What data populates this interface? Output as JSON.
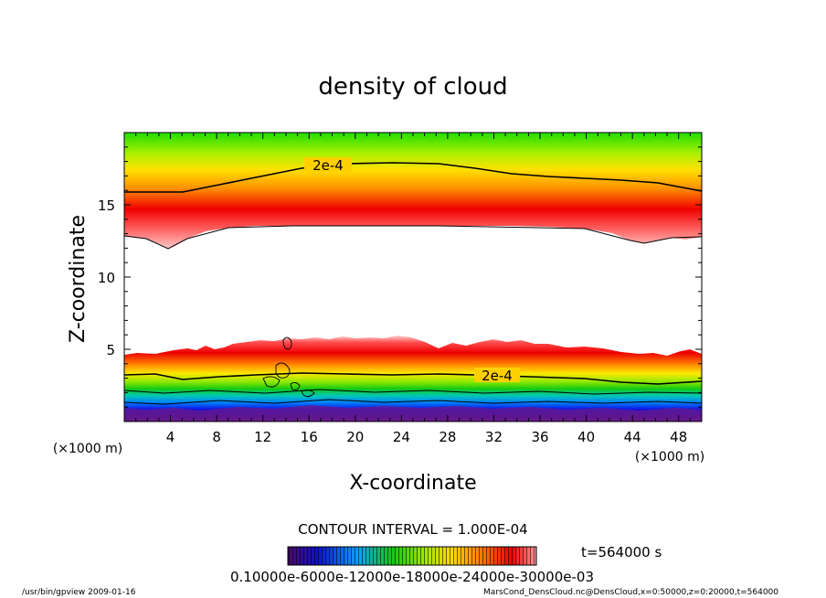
{
  "chart_data": {
    "type": "heatmap",
    "title": "density of cloud",
    "xlabel": "X-coordinate",
    "ylabel": "Z-coordinate",
    "x_unit": "(×1000 m)",
    "y_unit": "(×1000 m)",
    "xlim": [
      0,
      50
    ],
    "ylim": [
      0,
      20
    ],
    "x_ticks": [
      "4",
      "8",
      "12",
      "16",
      "20",
      "24",
      "28",
      "32",
      "36",
      "40",
      "44",
      "48"
    ],
    "y_ticks": [
      "5",
      "10",
      "15"
    ],
    "contour_labels": [
      "2e-4",
      "2e-4"
    ],
    "contour_interval_text": "CONTOUR INTERVAL = 1.000E-04",
    "time_text": "t=564000 s",
    "colorbar_text": "0.10000e-6000e-12000e-18000e-24000e-30000e-03",
    "colors": {
      "low": "#1a0a7a",
      "mid": "#1ec81e",
      "high": "#e80000",
      "edge": "#ffb3b3"
    }
  },
  "footer": {
    "left": "/usr/bin/gpview   2009-01-16",
    "right": "MarsCond_DensCloud.nc@DensCloud,x=0:50000,z=0:20000,t=564000"
  }
}
